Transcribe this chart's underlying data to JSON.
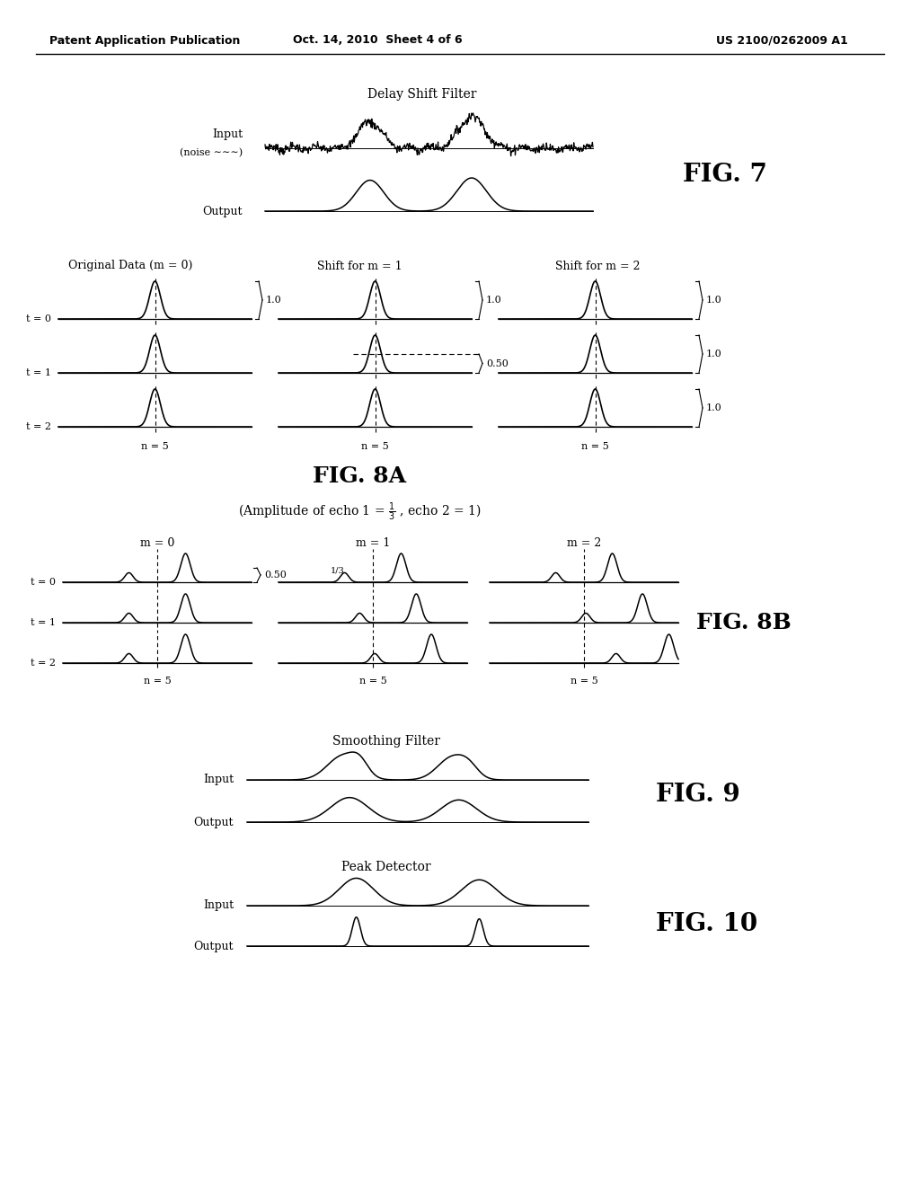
{
  "bg_color": "#ffffff",
  "header_left": "Patent Application Publication",
  "header_center": "Oct. 14, 2010  Sheet 4 of 6",
  "header_right": "US 2100/0262009 A1",
  "fig7_title": "Delay Shift Filter",
  "fig7_label": "FIG. 7",
  "fig8a_col1_title": "Original Data (m = 0)",
  "fig8a_col2_title": "Shift for m = 1",
  "fig8a_col3_title": "Shift for m = 2",
  "fig8a_label": "FIG. 8A",
  "fig8b_col1_title": "m = 0",
  "fig8b_col2_title": "m = 1",
  "fig8b_col3_title": "m = 2",
  "fig8b_label": "FIG. 8B",
  "fig9_title": "Smoothing Filter",
  "fig9_label": "FIG. 9",
  "fig10_title": "Peak Detector",
  "fig10_label": "FIG. 10"
}
